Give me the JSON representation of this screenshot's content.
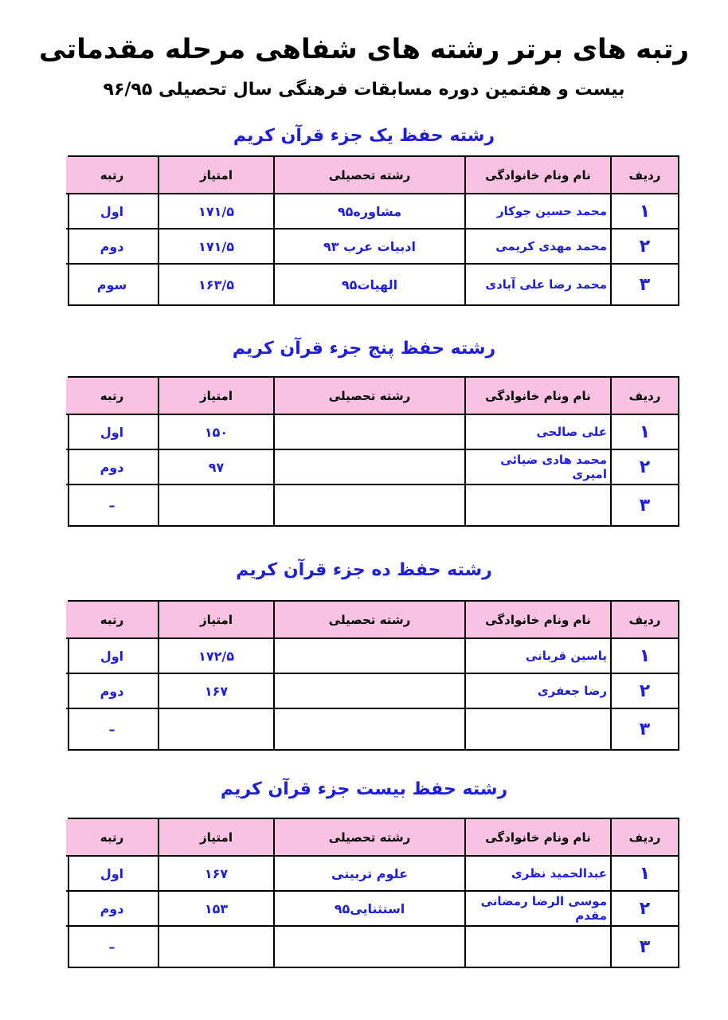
{
  "title": "رتبه های برتر رشته های شفاهی مرحله مقدماتی",
  "subtitle": "بیست و هفتمین دوره مسابقات فرهنگی سال تحصیلی ۹۶/۹۵",
  "sections": [
    {
      "heading": "رشته حفظ یک جزء قرآن کریم",
      "header": [
        "ردیف",
        "نام ونام خانوادگی",
        "رشته تحصیلی",
        "امتیاز",
        "رتبه"
      ],
      "rows": [
        [
          "۱",
          "محمد حسین جوکار",
          "مشاوره۹۵",
          "۱۷۱/۵",
          "اول"
        ],
        [
          "۲",
          "محمد مهدی کریمی",
          "ادبیات عرب ۹۳",
          "۱۷۱/۵",
          "دوم"
        ],
        [
          "۳",
          "محمد رضا علی آبادی",
          "الهیات۹۵",
          "۱۶۳/۵",
          "سوم"
        ]
      ]
    },
    {
      "heading": "رشته حفظ پنج جزء قرآن کریم",
      "header": [
        "ردیف",
        "نام ونام خانوادگی",
        "رشته تحصیلی",
        "امتیاز",
        "رتبه"
      ],
      "rows": [
        [
          "۱",
          "علی صالحی",
          null,
          "۱۵۰",
          "اول"
        ],
        [
          "۲",
          "محمد هادی ضیائی امیری",
          null,
          "۹۷",
          "دوم"
        ],
        [
          "۳",
          null,
          null,
          null,
          "–"
        ]
      ]
    },
    {
      "heading": "رشته حفظ ده جزء قرآن کریم",
      "header": [
        "ردیف",
        "نام ونام خانوادگی",
        "رشته تحصیلی",
        "امتیاز",
        "رتبه"
      ],
      "rows": [
        [
          "۱",
          "یاسین قربانی",
          null,
          "۱۷۲/۵",
          "اول"
        ],
        [
          "۲",
          "رضا جعفری",
          null,
          "۱۶۷",
          "دوم"
        ],
        [
          "۳",
          null,
          null,
          null,
          "–"
        ]
      ]
    },
    {
      "heading": "رشته حفظ بیست جزء قرآن کریم",
      "header": [
        "ردیف",
        "نام ونام خانوادگی",
        "رشته تحصیلی",
        "امتیاز",
        "رتبه"
      ],
      "rows": [
        [
          "۱",
          "عبدالحمید نظری",
          "علوم تربیتی",
          "۱۶۷",
          "اول"
        ],
        [
          "۲",
          "موسی الرضا رمضانی مقدم",
          "استثنایی۹۵",
          "۱۵۳",
          "دوم"
        ],
        [
          "۳",
          null,
          null,
          null,
          "–"
        ]
      ]
    }
  ]
}
